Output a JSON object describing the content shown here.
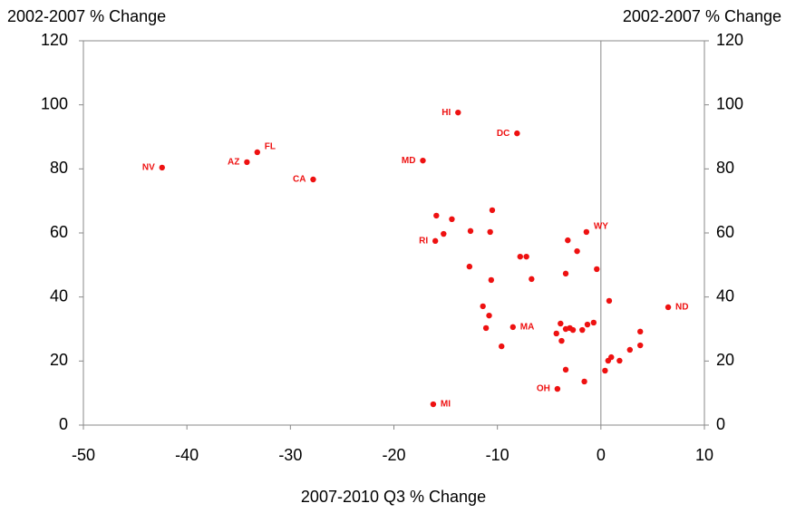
{
  "chart_data": {
    "type": "scatter",
    "xlabel": "2007-2010 Q3 % Change",
    "ylabel": "2002-2007 % Change",
    "y2label": "2002-2007 % Change",
    "color": "#ee1111",
    "xlim": [
      -50,
      10
    ],
    "xticks": [
      -50,
      -40,
      -30,
      -20,
      -10,
      0,
      10
    ],
    "ylim": [
      0,
      120
    ],
    "yticks": [
      0,
      20,
      40,
      60,
      80,
      100,
      120
    ],
    "y2lim": [
      0,
      120
    ],
    "y2ticks": [
      0,
      20,
      40,
      60,
      80,
      100,
      120
    ],
    "reference_x": 0,
    "x": [
      -42.4,
      -34.2,
      -33.2,
      -27.8,
      -17.2,
      -13.8,
      -8.1,
      -1.4,
      -16.0,
      6.5,
      -8.5,
      -4.2,
      -16.2,
      -15.9,
      -14.4,
      -15.2,
      -10.5,
      -12.6,
      -10.7,
      -12.7,
      -10.6,
      -7.8,
      -7.2,
      -6.7,
      -3.2,
      -2.3,
      -3.4,
      -0.4,
      0.8,
      -11.4,
      -10.8,
      -11.1,
      -9.6,
      -3.9,
      -4.3,
      -3.8,
      -3.4,
      -3.0,
      -2.7,
      -1.8,
      -1.3,
      -0.7,
      -3.4,
      -1.6,
      0.4,
      0.7,
      1.0,
      1.8,
      2.8,
      3.8,
      3.8
    ],
    "values": [
      80.4,
      82.1,
      85.2,
      76.7,
      82.6,
      97.6,
      91.1,
      60.3,
      57.5,
      36.8,
      30.6,
      11.3,
      6.5,
      65.4,
      64.3,
      59.7,
      67.1,
      60.6,
      60.3,
      49.5,
      45.3,
      52.6,
      52.6,
      45.6,
      57.7,
      54.3,
      47.3,
      48.7,
      38.8,
      37.1,
      34.2,
      30.3,
      24.6,
      31.7,
      28.6,
      26.3,
      30.0,
      30.3,
      29.7,
      29.7,
      31.4,
      32.0,
      17.3,
      13.6,
      17.0,
      20.1,
      21.2,
      20.1,
      23.5,
      29.2,
      24.9
    ],
    "point_labels": [
      "NV",
      "AZ",
      "FL",
      "CA",
      "MD",
      "HI",
      "DC",
      "WY",
      "RI",
      "ND",
      "MA",
      "OH",
      "MI",
      null,
      null,
      null,
      null,
      null,
      null,
      null,
      null,
      null,
      null,
      null,
      null,
      null,
      null,
      null,
      null,
      null,
      null,
      null,
      null,
      null,
      null,
      null,
      null,
      null,
      null,
      null,
      null,
      null,
      null,
      null,
      null,
      null,
      null,
      null,
      null,
      null,
      null
    ]
  }
}
